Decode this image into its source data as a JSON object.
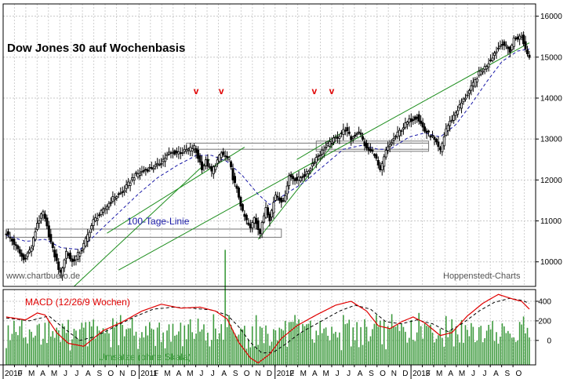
{
  "chart_data": [
    {
      "type": "candlestick",
      "title": "Dow Jones 30 auf Wochenbasis",
      "watermark_left": "www.chartbuero.de",
      "watermark_right": "Hoppenstedt-Charts",
      "ylim": [
        9400,
        16300
      ],
      "yticks": [
        10000,
        11000,
        12000,
        13000,
        14000,
        15000,
        16000
      ],
      "ma_label": "100-Tage-Linie",
      "markers": [
        "v",
        "v",
        "v",
        "v"
      ],
      "colors": {
        "price": "#000000",
        "ma": "#1a1aa8",
        "trend": "#1f8f1f",
        "signal": "#e00000",
        "box": "#777777"
      },
      "anchors": [
        [
          0,
          10700
        ],
        [
          4,
          10450
        ],
        [
          9,
          10050
        ],
        [
          13,
          10350
        ],
        [
          16,
          10950
        ],
        [
          19,
          11200
        ],
        [
          24,
          10300
        ],
        [
          28,
          9700
        ],
        [
          31,
          10250
        ],
        [
          34,
          10000
        ],
        [
          39,
          10300
        ],
        [
          45,
          11000
        ],
        [
          50,
          11250
        ],
        [
          55,
          11550
        ],
        [
          60,
          11700
        ],
        [
          66,
          12100
        ],
        [
          72,
          12250
        ],
        [
          78,
          12350
        ],
        [
          84,
          12650
        ],
        [
          92,
          12700
        ],
        [
          97,
          12800
        ],
        [
          101,
          12300
        ],
        [
          103,
          12450
        ],
        [
          106,
          12200
        ],
        [
          111,
          12650
        ],
        [
          115,
          12500
        ],
        [
          117,
          12050
        ],
        [
          120,
          11600
        ],
        [
          122,
          11200
        ],
        [
          126,
          10800
        ],
        [
          128,
          11100
        ],
        [
          131,
          10700
        ],
        [
          134,
          11350
        ],
        [
          136,
          11050
        ],
        [
          139,
          11650
        ],
        [
          143,
          11450
        ],
        [
          146,
          12100
        ],
        [
          150,
          12000
        ],
        [
          155,
          12150
        ],
        [
          160,
          12550
        ],
        [
          166,
          12850
        ],
        [
          172,
          13100
        ],
        [
          175,
          13250
        ],
        [
          178,
          13000
        ],
        [
          182,
          13200
        ],
        [
          186,
          12750
        ],
        [
          190,
          12650
        ],
        [
          193,
          12200
        ],
        [
          196,
          12700
        ],
        [
          200,
          13000
        ],
        [
          204,
          13250
        ],
        [
          208,
          13450
        ],
        [
          212,
          13550
        ],
        [
          216,
          13200
        ],
        [
          220,
          13050
        ],
        [
          224,
          12700
        ],
        [
          227,
          13250
        ],
        [
          232,
          13650
        ],
        [
          236,
          13950
        ],
        [
          240,
          14250
        ],
        [
          244,
          14600
        ],
        [
          248,
          14800
        ],
        [
          252,
          15100
        ],
        [
          256,
          15350
        ],
        [
          260,
          15150
        ],
        [
          262,
          15450
        ],
        [
          266,
          15500
        ],
        [
          268,
          15200
        ],
        [
          270,
          15000
        ]
      ],
      "ma_anchors": [
        [
          0,
          10650
        ],
        [
          10,
          10500
        ],
        [
          20,
          10550
        ],
        [
          28,
          10350
        ],
        [
          38,
          10300
        ],
        [
          48,
          10750
        ],
        [
          58,
          11200
        ],
        [
          68,
          11650
        ],
        [
          78,
          12050
        ],
        [
          88,
          12350
        ],
        [
          98,
          12600
        ],
        [
          106,
          12600
        ],
        [
          114,
          12450
        ],
        [
          122,
          12100
        ],
        [
          130,
          11650
        ],
        [
          136,
          11400
        ],
        [
          144,
          11650
        ],
        [
          154,
          11950
        ],
        [
          164,
          12350
        ],
        [
          174,
          12750
        ],
        [
          184,
          12850
        ],
        [
          192,
          12750
        ],
        [
          198,
          12750
        ],
        [
          208,
          13050
        ],
        [
          216,
          13150
        ],
        [
          224,
          13050
        ],
        [
          232,
          13350
        ],
        [
          240,
          13850
        ],
        [
          248,
          14400
        ],
        [
          256,
          14900
        ],
        [
          264,
          15150
        ],
        [
          270,
          15200
        ]
      ],
      "trend_lines": [
        {
          "from": [
            35,
            9400
          ],
          "to": [
            105,
            12500
          ]
        },
        {
          "from": [
            52,
            10700
          ],
          "to": [
            123,
            12800
          ]
        },
        {
          "from": [
            58,
            9800
          ],
          "to": [
            270,
            15350
          ]
        },
        {
          "from": [
            130,
            10550
          ],
          "to": [
            170,
            12950
          ]
        },
        {
          "from": [
            150,
            12500
          ],
          "to": [
            175,
            13200
          ]
        }
      ],
      "boxes": [
        {
          "from": [
            0,
            10600
          ],
          "to": [
            142,
            10800
          ]
        },
        {
          "from": [
            93,
            12750
          ],
          "to": [
            218,
            12900
          ]
        },
        {
          "from": [
            160,
            12700
          ],
          "to": [
            218,
            12950
          ]
        }
      ],
      "signal_markers_x": [
        98,
        111,
        159,
        168
      ]
    },
    {
      "type": "line+bar",
      "label_macd": "MACD (12/26/9 Wochen)",
      "label_volume": "Umsätze (ohne Skala)",
      "ylim": [
        -250,
        520
      ],
      "yticks": [
        400,
        200,
        0
      ],
      "colors": {
        "macd": "#e00000",
        "signal": "#000000",
        "volume": "#3f9b3f"
      },
      "macd_anchors": [
        [
          0,
          240
        ],
        [
          10,
          210
        ],
        [
          16,
          280
        ],
        [
          20,
          260
        ],
        [
          26,
          80
        ],
        [
          32,
          -30
        ],
        [
          40,
          -60
        ],
        [
          50,
          100
        ],
        [
          60,
          190
        ],
        [
          70,
          300
        ],
        [
          80,
          370
        ],
        [
          90,
          330
        ],
        [
          100,
          340
        ],
        [
          108,
          300
        ],
        [
          114,
          220
        ],
        [
          120,
          -20
        ],
        [
          126,
          -180
        ],
        [
          130,
          -230
        ],
        [
          136,
          -140
        ],
        [
          142,
          20
        ],
        [
          150,
          150
        ],
        [
          160,
          260
        ],
        [
          170,
          360
        ],
        [
          178,
          400
        ],
        [
          186,
          300
        ],
        [
          192,
          150
        ],
        [
          198,
          120
        ],
        [
          204,
          190
        ],
        [
          210,
          240
        ],
        [
          216,
          180
        ],
        [
          224,
          50
        ],
        [
          230,
          80
        ],
        [
          238,
          250
        ],
        [
          246,
          380
        ],
        [
          254,
          470
        ],
        [
          262,
          420
        ],
        [
          266,
          400
        ],
        [
          270,
          320
        ]
      ],
      "signal_anchors": [
        [
          0,
          230
        ],
        [
          12,
          200
        ],
        [
          22,
          250
        ],
        [
          30,
          120
        ],
        [
          38,
          0
        ],
        [
          46,
          40
        ],
        [
          56,
          140
        ],
        [
          66,
          240
        ],
        [
          76,
          320
        ],
        [
          86,
          340
        ],
        [
          96,
          330
        ],
        [
          106,
          310
        ],
        [
          114,
          260
        ],
        [
          120,
          140
        ],
        [
          126,
          -20
        ],
        [
          132,
          -130
        ],
        [
          138,
          -120
        ],
        [
          144,
          -40
        ],
        [
          152,
          80
        ],
        [
          162,
          190
        ],
        [
          172,
          300
        ],
        [
          180,
          360
        ],
        [
          188,
          320
        ],
        [
          196,
          190
        ],
        [
          204,
          170
        ],
        [
          212,
          210
        ],
        [
          220,
          170
        ],
        [
          228,
          90
        ],
        [
          236,
          180
        ],
        [
          244,
          300
        ],
        [
          252,
          390
        ],
        [
          260,
          430
        ],
        [
          266,
          410
        ],
        [
          270,
          380
        ]
      ],
      "volume_pattern": [
        0.55,
        0.8,
        0.6,
        0.95,
        0.7,
        0.5,
        0.85,
        0.65,
        0.75,
        0.9,
        0.6,
        0.7,
        0.5,
        0.8
      ]
    }
  ],
  "x_axis": {
    "year_labels": [
      "2010",
      "2011",
      "2012",
      "2013"
    ],
    "month_labels": [
      "J",
      "F",
      "M",
      "A",
      "M",
      "J",
      "J",
      "A",
      "S",
      "O",
      "N",
      "D",
      "J",
      "F",
      "M",
      "A",
      "M",
      "J",
      "J",
      "A",
      "S",
      "O",
      "N",
      "D",
      "J",
      "F",
      "M",
      "A",
      "M",
      "J",
      "J",
      "A",
      "S",
      "O",
      "N",
      "D",
      "J",
      "F",
      "M",
      "A",
      "M",
      "J",
      "J",
      "A",
      "S",
      "O"
    ]
  }
}
